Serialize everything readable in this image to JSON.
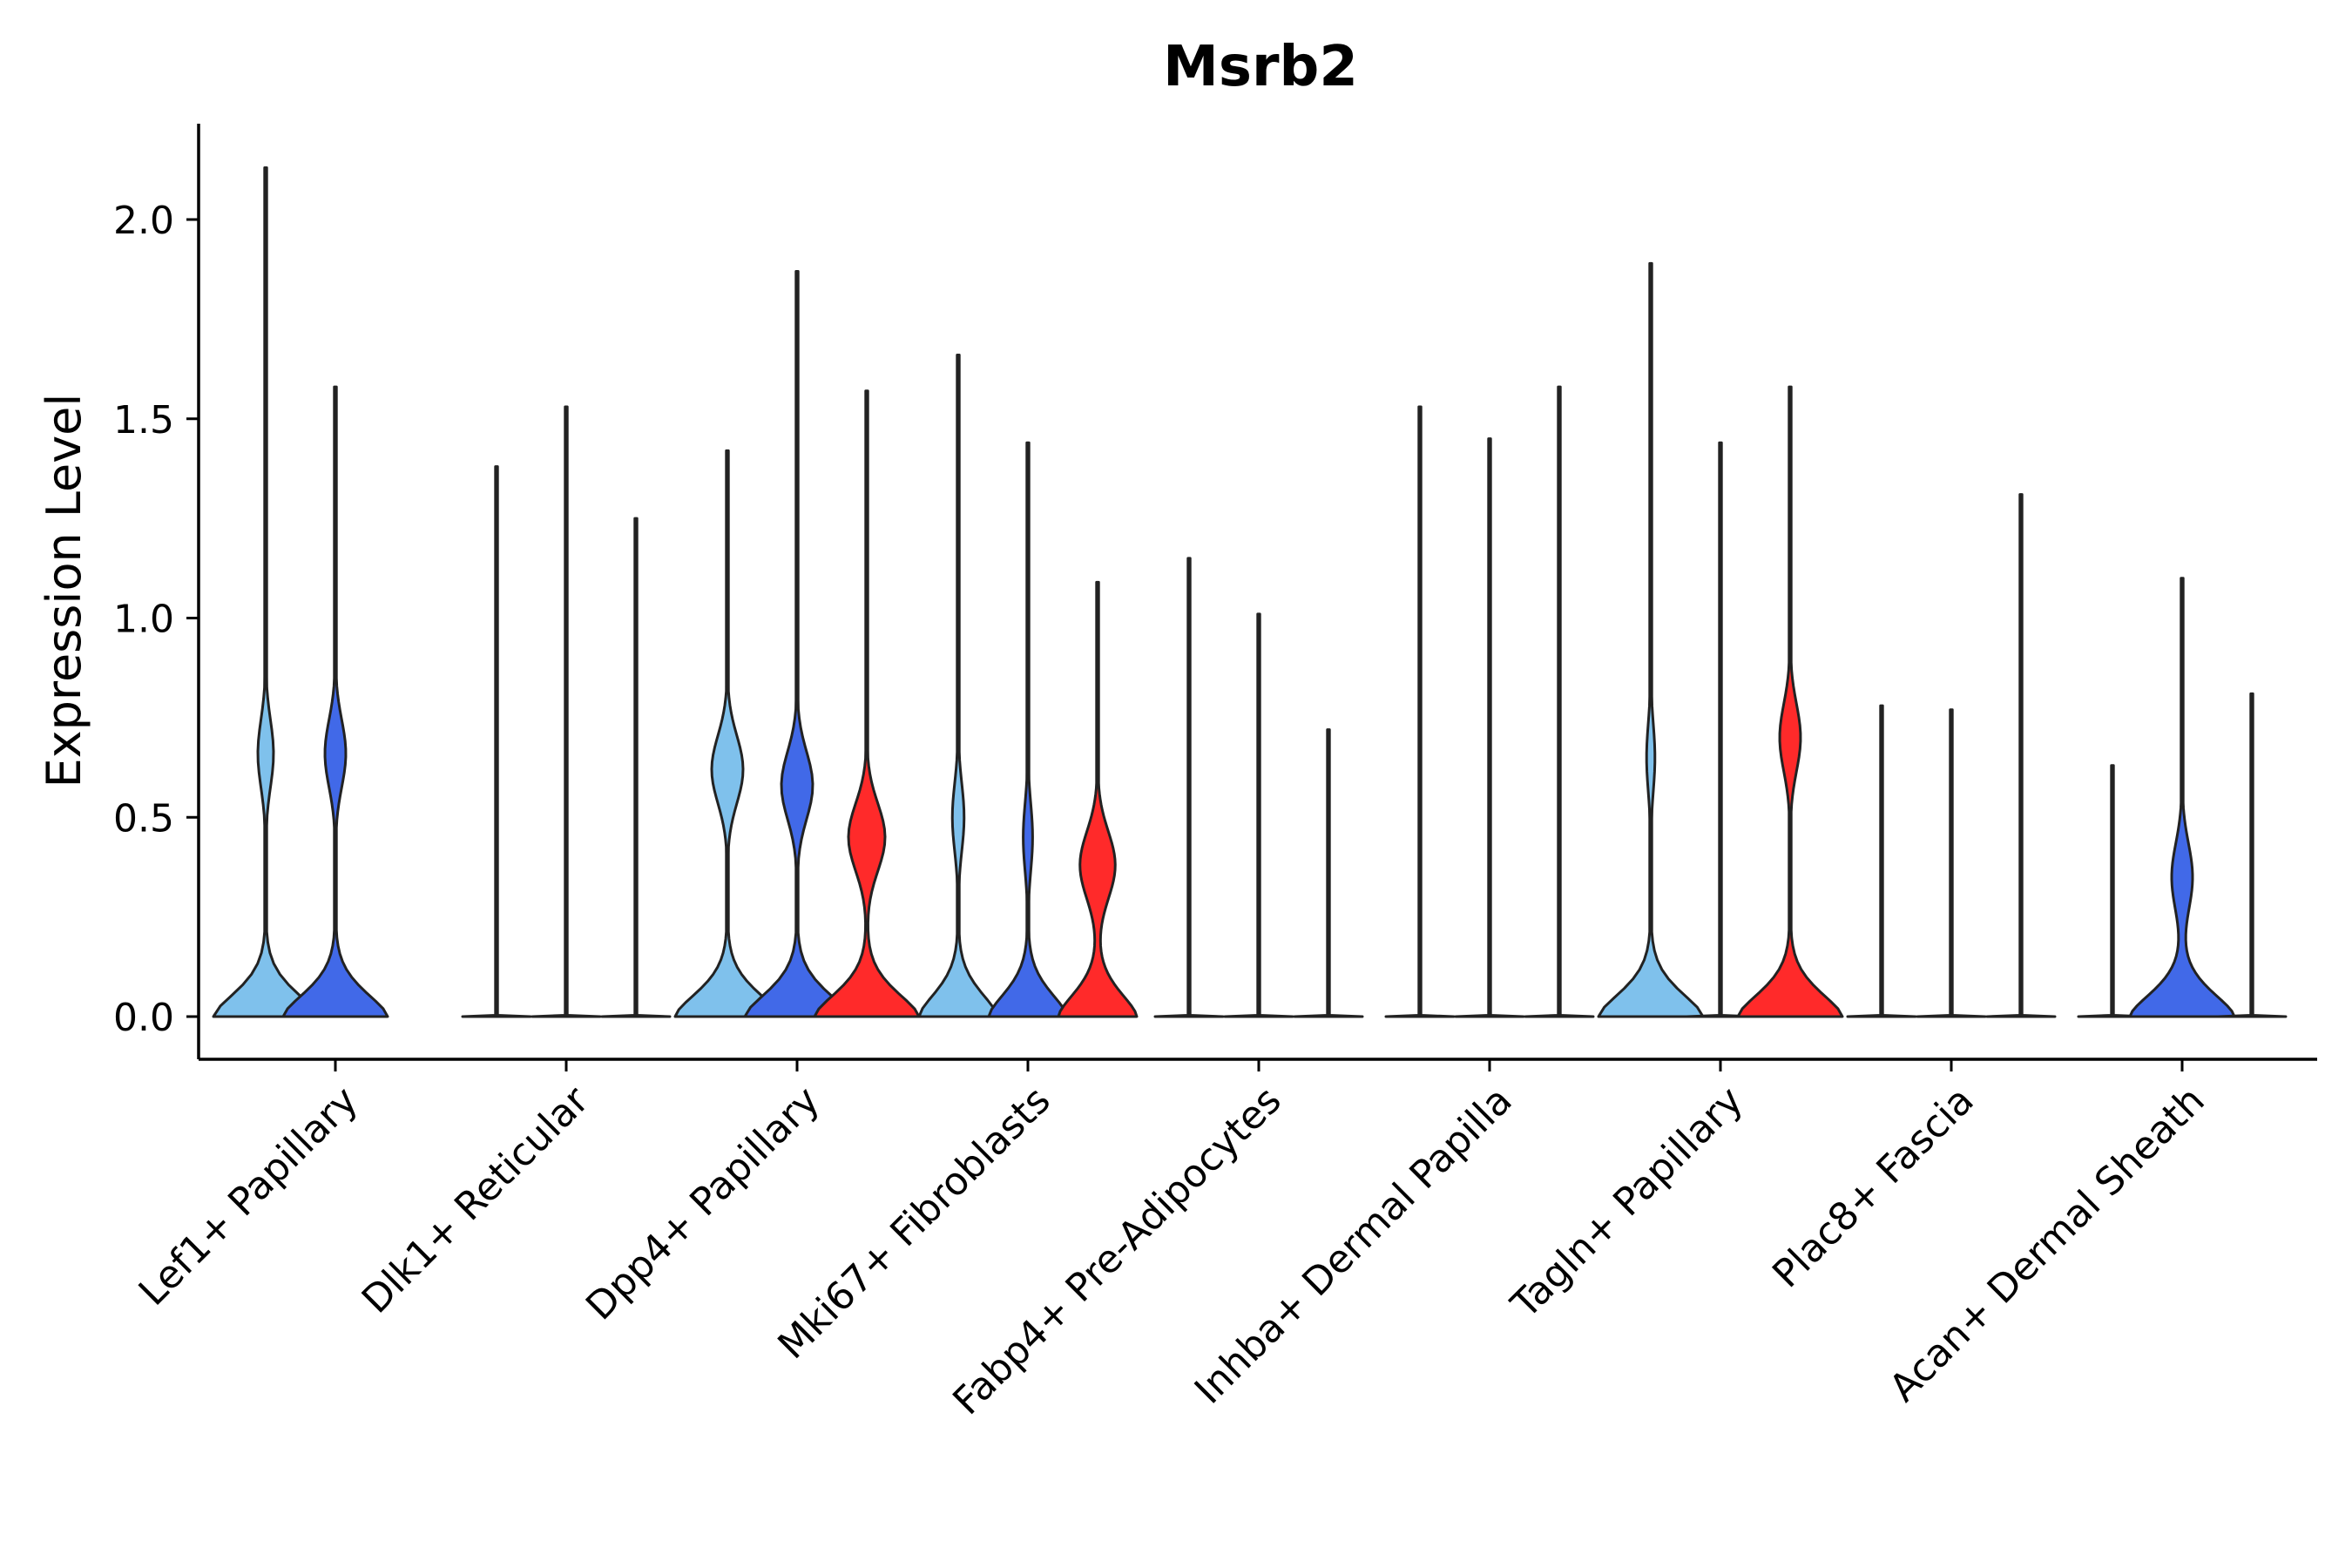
{
  "chart_data": {
    "type": "violin",
    "title": "Msrb2",
    "xlabel": "",
    "ylabel": "Expression Level",
    "ylim": [
      -0.1,
      2.23
    ],
    "yticks": [
      0.0,
      0.5,
      1.0,
      1.5,
      2.0
    ],
    "ytick_labels": [
      "0.0",
      "0.5",
      "1.0",
      "1.5",
      "2.0"
    ],
    "categories": [
      "Lef1+ Papillary",
      "Dlk1+ Reticular",
      "Dpp4+ Papillary",
      "Mki67+ Fibroblasts",
      "Fabp4+ Pre-Adipocytes",
      "Inhba+ Dermal Papilla",
      "Tagln+ Papillary",
      "Plac8+ Fascia",
      "Acan+ Dermal Sheath"
    ],
    "colors": {
      "Group 1": "#7fc1ec",
      "Group 2": "#4169e8",
      "Group 3": "#ff2a2a"
    },
    "groups": [
      "Group 1",
      "Group 2",
      "Group 3"
    ],
    "violins": [
      {
        "category": "Lef1+ Papillary",
        "group": "Group 1",
        "max": 2.13,
        "width": 1.0,
        "mode": 0.66,
        "mode_width": 0.15
      },
      {
        "category": "Lef1+ Papillary",
        "group": "Group 2",
        "max": 1.58,
        "width": 1.0,
        "mode": 0.66,
        "mode_width": 0.2
      },
      {
        "category": "Lef1+ Papillary",
        "group": "Group 3",
        "max": null,
        "width": 0,
        "mode": null,
        "mode_width": 0
      },
      {
        "category": "Dlk1+ Reticular",
        "group": "Group 1",
        "max": 1.38,
        "width": 0.0,
        "mode": null,
        "mode_width": 0
      },
      {
        "category": "Dlk1+ Reticular",
        "group": "Group 2",
        "max": 1.53,
        "width": 0.0,
        "mode": null,
        "mode_width": 0
      },
      {
        "category": "Dlk1+ Reticular",
        "group": "Group 3",
        "max": 1.25,
        "width": 0.0,
        "mode": null,
        "mode_width": 0
      },
      {
        "category": "Dpp4+ Papillary",
        "group": "Group 1",
        "max": 1.42,
        "width": 1.0,
        "mode": 0.62,
        "mode_width": 0.3
      },
      {
        "category": "Dpp4+ Papillary",
        "group": "Group 2",
        "max": 1.87,
        "width": 1.0,
        "mode": 0.58,
        "mode_width": 0.3
      },
      {
        "category": "Dpp4+ Papillary",
        "group": "Group 3",
        "max": 1.57,
        "width": 1.0,
        "mode": 0.45,
        "mode_width": 0.35
      },
      {
        "category": "Mki67+ Fibroblasts",
        "group": "Group 1",
        "max": 1.66,
        "width": 0.75,
        "mode": 0.5,
        "mode_width": 0.15
      },
      {
        "category": "Mki67+ Fibroblasts",
        "group": "Group 2",
        "max": 1.44,
        "width": 0.75,
        "mode": 0.45,
        "mode_width": 0.12
      },
      {
        "category": "Mki67+ Fibroblasts",
        "group": "Group 3",
        "max": 1.09,
        "width": 0.75,
        "mode": 0.38,
        "mode_width": 0.45
      },
      {
        "category": "Fabp4+ Pre-Adipocytes",
        "group": "Group 1",
        "max": 1.15,
        "width": 0.0,
        "mode": null,
        "mode_width": 0
      },
      {
        "category": "Fabp4+ Pre-Adipocytes",
        "group": "Group 2",
        "max": 1.01,
        "width": 0.0,
        "mode": null,
        "mode_width": 0
      },
      {
        "category": "Fabp4+ Pre-Adipocytes",
        "group": "Group 3",
        "max": 0.72,
        "width": 0.0,
        "mode": null,
        "mode_width": 0
      },
      {
        "category": "Inhba+ Dermal Papilla",
        "group": "Group 1",
        "max": 1.53,
        "width": 0.0,
        "mode": null,
        "mode_width": 0
      },
      {
        "category": "Inhba+ Dermal Papilla",
        "group": "Group 2",
        "max": 1.45,
        "width": 0.0,
        "mode": null,
        "mode_width": 0
      },
      {
        "category": "Inhba+ Dermal Papilla",
        "group": "Group 3",
        "max": 1.58,
        "width": 0.0,
        "mode": null,
        "mode_width": 0
      },
      {
        "category": "Tagln+ Papillary",
        "group": "Group 1",
        "max": 1.89,
        "width": 1.0,
        "mode": 0.65,
        "mode_width": 0.08
      },
      {
        "category": "Tagln+ Papillary",
        "group": "Group 2",
        "max": 1.44,
        "width": 0.0,
        "mode": null,
        "mode_width": 0
      },
      {
        "category": "Tagln+ Papillary",
        "group": "Group 3",
        "max": 1.58,
        "width": 1.0,
        "mode": 0.7,
        "mode_width": 0.2
      },
      {
        "category": "Plac8+ Fascia",
        "group": "Group 1",
        "max": 0.78,
        "width": 0.0,
        "mode": null,
        "mode_width": 0
      },
      {
        "category": "Plac8+ Fascia",
        "group": "Group 2",
        "max": 0.77,
        "width": 0.0,
        "mode": null,
        "mode_width": 0
      },
      {
        "category": "Plac8+ Fascia",
        "group": "Group 3",
        "max": 1.31,
        "width": 0.0,
        "mode": null,
        "mode_width": 0
      },
      {
        "category": "Acan+ Dermal Sheath",
        "group": "Group 1",
        "max": 0.63,
        "width": 0.0,
        "mode": null,
        "mode_width": 0
      },
      {
        "category": "Acan+ Dermal Sheath",
        "group": "Group 2",
        "max": 1.1,
        "width": 1.0,
        "mode": 0.35,
        "mode_width": 0.2
      },
      {
        "category": "Acan+ Dermal Sheath",
        "group": "Group 3",
        "max": 0.81,
        "width": 0.0,
        "mode": null,
        "mode_width": 0
      }
    ]
  }
}
